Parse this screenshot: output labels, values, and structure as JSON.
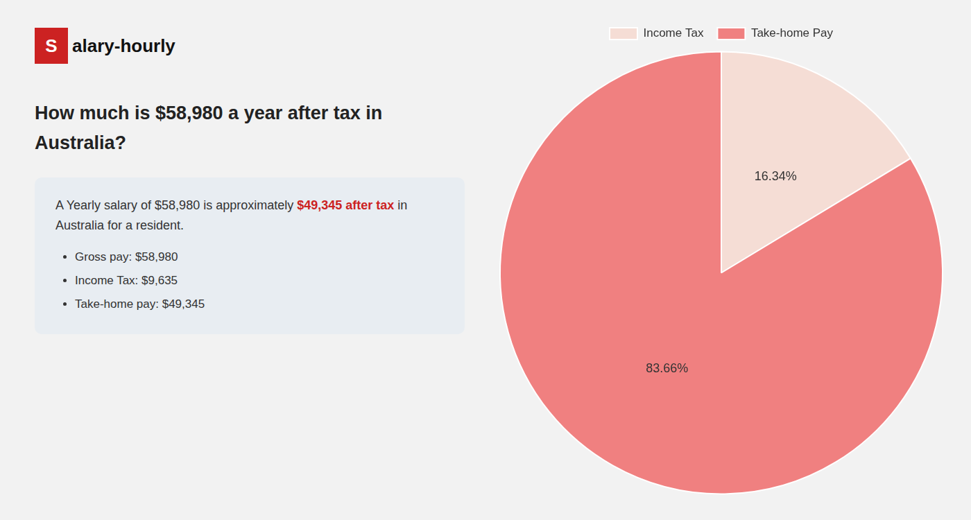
{
  "chart_data": {
    "type": "pie",
    "title": [
      "How much is $58,980 a year after tax in",
      "Australia?"
    ],
    "annotations": [
      [
        {
          "text": "S",
          "color": "#cc2222"
        },
        {
          "text": "alary-hourly"
        }
      ],
      [
        {
          "text": "A Yearly salary of $58,980 is approximately "
        },
        {
          "text": "$49,345 after tax",
          "color": "#cc2222"
        },
        {
          "text": " in"
        }
      ],
      [
        {
          "text": "Australia for a resident."
        }
      ],
      [
        {
          "text": "Gross pay: $58,980",
          "marker": "bullet"
        }
      ],
      [
        {
          "text": "Income Tax: $9,635",
          "marker": "bullet"
        }
      ],
      [
        {
          "text": "Take-home pay: $49,345",
          "marker": "bullet"
        }
      ]
    ],
    "categories": [
      "Income Tax",
      "Take-home Pay"
    ],
    "values": [
      16.34,
      83.66
    ],
    "value_labels": [
      "16.34%",
      "83.66%"
    ],
    "colors": [
      "#f5ddd5",
      "#f08080"
    ],
    "data_labels": true,
    "legend": "top"
  }
}
